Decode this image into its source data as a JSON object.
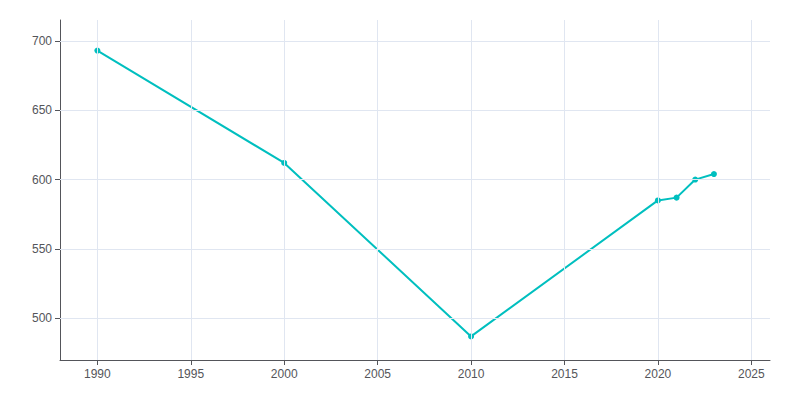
{
  "chart_data": {
    "type": "line",
    "x": [
      1990,
      2000,
      2010,
      2020,
      2021,
      2022,
      2023
    ],
    "values": [
      693,
      612,
      487,
      585,
      587,
      600,
      604
    ],
    "color": "#00BFBF",
    "marker": "circle",
    "xlim": [
      1988,
      2026
    ],
    "ylim": [
      470,
      715
    ],
    "xticks": [
      1990,
      1995,
      2000,
      2005,
      2010,
      2015,
      2020,
      2025
    ],
    "yticks": [
      500,
      550,
      600,
      650,
      700
    ],
    "grid": true
  }
}
